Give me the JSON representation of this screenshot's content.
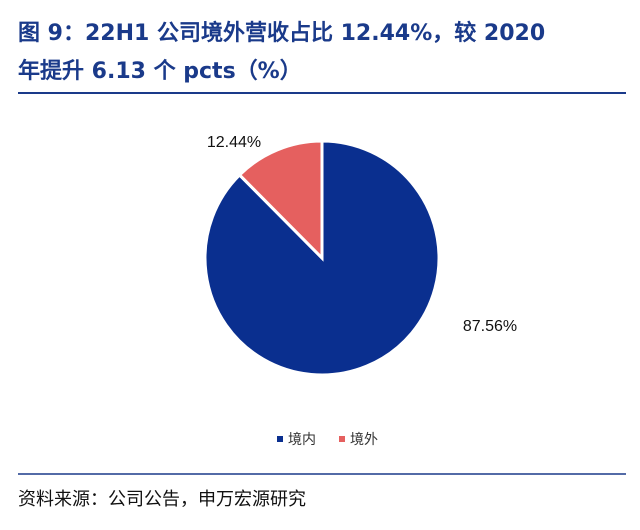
{
  "chart_data": {
    "type": "pie",
    "title": [
      "图 9：22H1 公司境外营收占比 12.44%，较 2020",
      "年提升 6.13 个 pcts（%）"
    ],
    "categories": [
      "境内",
      "境外"
    ],
    "values": [
      87.56,
      12.44
    ],
    "value_labels": [
      "87.56%",
      "12.44%"
    ],
    "colors": [
      "#0a2f8f",
      "#e5605f"
    ],
    "source": "资料来源：公司公告，申万宏源研究"
  }
}
